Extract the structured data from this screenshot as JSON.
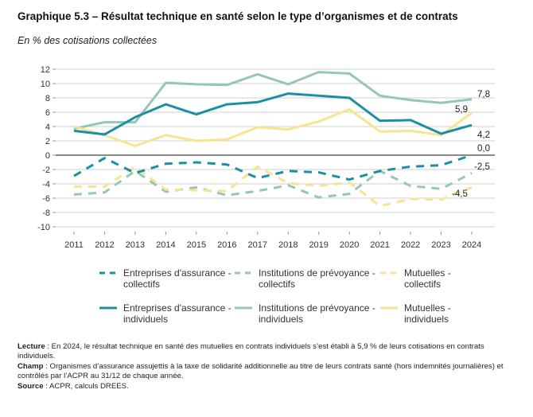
{
  "title": "Graphique 5.3 – Résultat technique en santé selon le type d’organismes et de contrats",
  "subtitle": "En % des cotisations collectées",
  "chart_data": {
    "type": "line",
    "x": [
      2011,
      2012,
      2013,
      2014,
      2015,
      2016,
      2017,
      2018,
      2019,
      2020,
      2021,
      2022,
      2023,
      2024
    ],
    "ylim": [
      -10,
      12
    ],
    "yticks": [
      12,
      10,
      8,
      6,
      4,
      2,
      0,
      -2,
      -4,
      -6,
      -8,
      -10
    ],
    "grid": true,
    "legend_position": "bottom",
    "series": [
      {
        "name": "Entreprises d'assurance - collectifs",
        "style": "dashed",
        "color": "#1b8fa3",
        "values": [
          -2.9,
          -0.4,
          -2.5,
          -1.2,
          -1.0,
          -1.3,
          -3.2,
          -2.2,
          -2.4,
          -3.4,
          -2.2,
          -1.6,
          -1.4,
          0.0
        ],
        "end_label": "0,0"
      },
      {
        "name": "Institutions de prévoyance - collectifs",
        "style": "dashed",
        "color": "#97c6b6",
        "values": [
          -5.5,
          -5.2,
          -2.2,
          -5.1,
          -4.5,
          -5.6,
          -5.0,
          -4.2,
          -5.9,
          -5.4,
          -2.2,
          -4.3,
          -4.7,
          -2.5
        ],
        "end_label": "-2,5"
      },
      {
        "name": "Mutuelles - collectifs",
        "style": "dashed",
        "color": "#f6e491",
        "values": [
          -4.4,
          -4.4,
          -1.6,
          -4.8,
          -4.9,
          -5.0,
          -1.6,
          -3.9,
          -4.3,
          -3.8,
          -7.1,
          -6.1,
          -6.2,
          -4.5
        ],
        "end_label": "-4,5"
      },
      {
        "name": "Entreprises d'assurance - individuels",
        "style": "solid",
        "color": "#1b8fa3",
        "values": [
          3.4,
          2.9,
          5.3,
          7.1,
          5.7,
          7.1,
          7.4,
          8.6,
          8.3,
          8.0,
          4.8,
          4.9,
          3.0,
          4.2
        ],
        "end_label": "4,2"
      },
      {
        "name": "Institutions de prévoyance - individuels",
        "style": "solid",
        "color": "#97c6b6",
        "values": [
          3.7,
          4.6,
          4.6,
          10.1,
          9.9,
          9.8,
          11.3,
          9.9,
          11.6,
          11.4,
          8.3,
          7.7,
          7.3,
          7.8
        ],
        "end_label": "7,8"
      },
      {
        "name": "Mutuelles - individuels",
        "style": "solid",
        "color": "#f6e491",
        "values": [
          4.0,
          2.8,
          1.3,
          2.8,
          2.0,
          2.2,
          3.9,
          3.6,
          4.7,
          6.4,
          3.3,
          3.4,
          2.8,
          5.9
        ],
        "end_label": "5,9"
      }
    ]
  },
  "legend": [
    {
      "line1": "Entreprises d'assurance -",
      "line2": "collectifs"
    },
    {
      "line1": "Institutions de prévoyance -",
      "line2": "collectifs"
    },
    {
      "line1": "Mutuelles -",
      "line2": "collectifs"
    },
    {
      "line1": "Entreprises d'assurance -",
      "line2": "individuels"
    },
    {
      "line1": "Institutions de prévoyance -",
      "line2": "individuels"
    },
    {
      "line1": "Mutuelles -",
      "line2": "individuels"
    }
  ],
  "notes": {
    "lecture_label": "Lecture",
    "lecture": " : En 2024, le résultat technique en santé des mutuelles en contrats individuels s’est établi à 5,9 % de leurs cotisations en contrats individuels.",
    "champ_label": "Champ",
    "champ": " : Organismes d’assurance assujettis à la taxe de solidarité additionnelle au titre de leurs contrats santé (hors indemnités journalières) et contrôlés par l’ACPR au 31/12 de chaque année.",
    "source_label": "Source",
    "source": " : ACPR, calculs DREES."
  }
}
